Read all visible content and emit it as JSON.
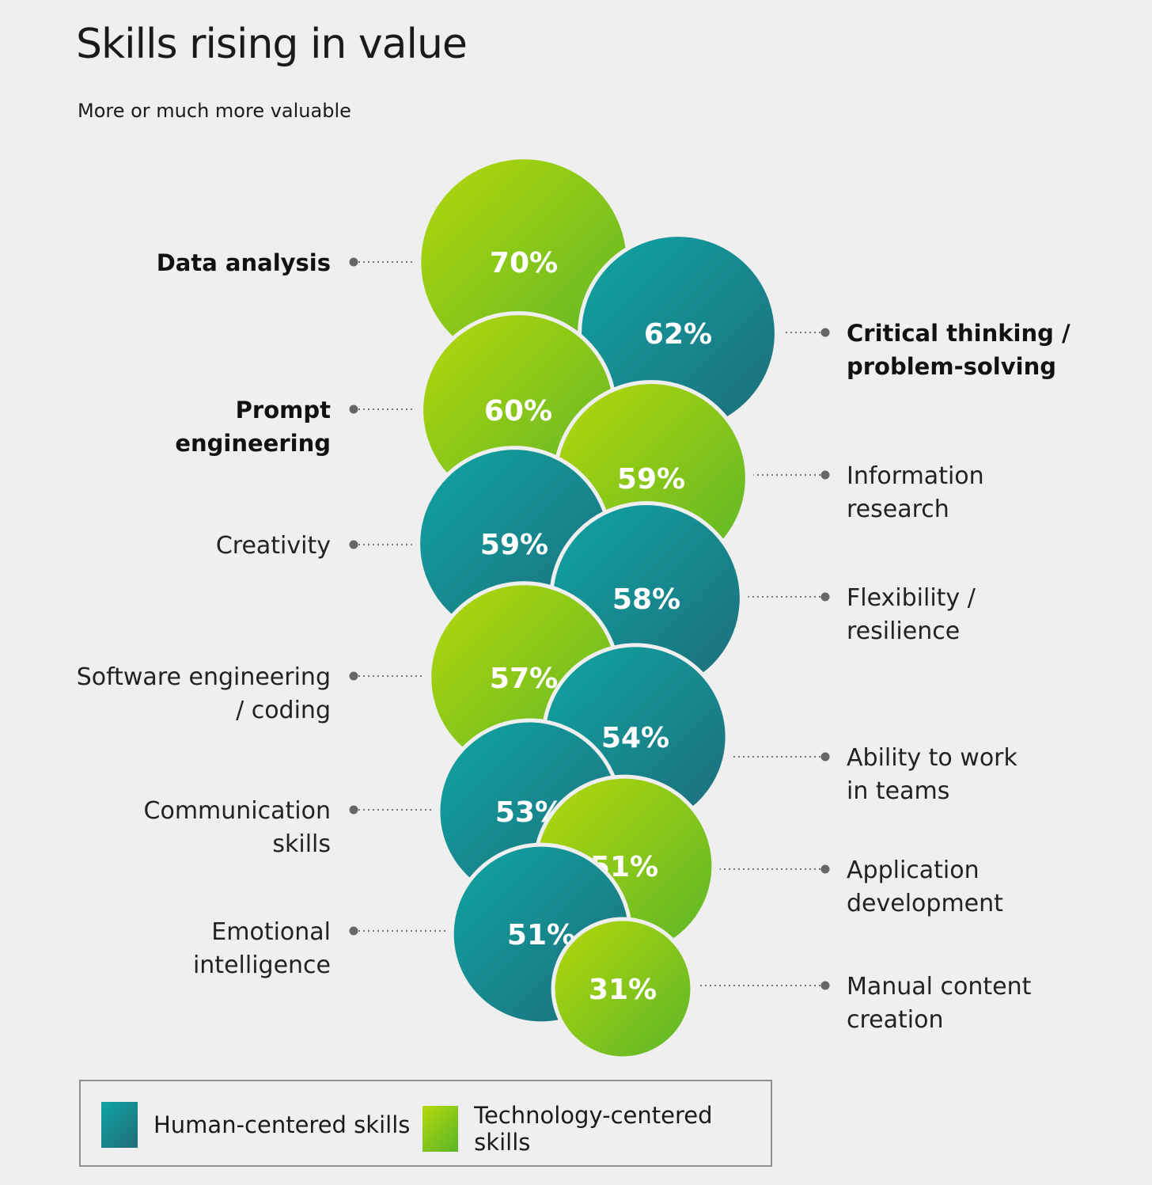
{
  "chart_data": {
    "type": "bubble",
    "title": "Skills rising in value",
    "subtitle": "More or much more valuable",
    "legend": [
      {
        "key": "human",
        "label": "Human-centered skills"
      },
      {
        "key": "tech",
        "label": "Technology-centered skills"
      }
    ],
    "colors": {
      "human_start": "#0fa5a3",
      "human_end": "#1e6c7a",
      "tech_start": "#b5d80a",
      "tech_end": "#5bb52a",
      "leader": "#777777"
    },
    "points": [
      {
        "label": "Data analysis",
        "label_lines": [
          "Data analysis"
        ],
        "value": 70,
        "value_label": "70%",
        "category": "tech",
        "side": "left",
        "bold": true
      },
      {
        "label": "Critical thinking / problem-solving",
        "label_lines": [
          "Critical thinking /",
          "problem-solving"
        ],
        "value": 62,
        "value_label": "62%",
        "category": "human",
        "side": "right",
        "bold": true
      },
      {
        "label": "Prompt engineering",
        "label_lines": [
          "Prompt",
          "engineering"
        ],
        "value": 60,
        "value_label": "60%",
        "category": "tech",
        "side": "left",
        "bold": true
      },
      {
        "label": "Information research",
        "label_lines": [
          "Information",
          "research"
        ],
        "value": 59,
        "value_label": "59%",
        "category": "tech",
        "side": "right",
        "bold": false
      },
      {
        "label": "Creativity",
        "label_lines": [
          "Creativity"
        ],
        "value": 59,
        "value_label": "59%",
        "category": "human",
        "side": "left",
        "bold": false
      },
      {
        "label": "Flexibility / resilience",
        "label_lines": [
          "Flexibility /",
          "resilience"
        ],
        "value": 58,
        "value_label": "58%",
        "category": "human",
        "side": "right",
        "bold": false
      },
      {
        "label": "Software engineering / coding",
        "label_lines": [
          "Software engineering",
          "/ coding"
        ],
        "value": 57,
        "value_label": "57%",
        "category": "tech",
        "side": "left",
        "bold": false
      },
      {
        "label": "Ability to work in teams",
        "label_lines": [
          "Ability to work",
          "in teams"
        ],
        "value": 54,
        "value_label": "54%",
        "category": "human",
        "side": "right",
        "bold": false
      },
      {
        "label": "Communication skills",
        "label_lines": [
          "Communication",
          "skills"
        ],
        "value": 53,
        "value_label": "53%",
        "category": "human",
        "side": "left",
        "bold": false
      },
      {
        "label": "Application development",
        "label_lines": [
          "Application",
          "development"
        ],
        "value": 51,
        "value_label": "51%",
        "category": "tech",
        "side": "right",
        "bold": false
      },
      {
        "label": "Emotional intelligence",
        "label_lines": [
          "Emotional",
          "intelligence"
        ],
        "value": 51,
        "value_label": "51%",
        "category": "human",
        "side": "left",
        "bold": false
      },
      {
        "label": "Manual content creation",
        "label_lines": [
          "Manual content",
          "creation"
        ],
        "value": 31,
        "value_label": "31%",
        "category": "tech",
        "side": "right",
        "bold": false
      }
    ]
  }
}
